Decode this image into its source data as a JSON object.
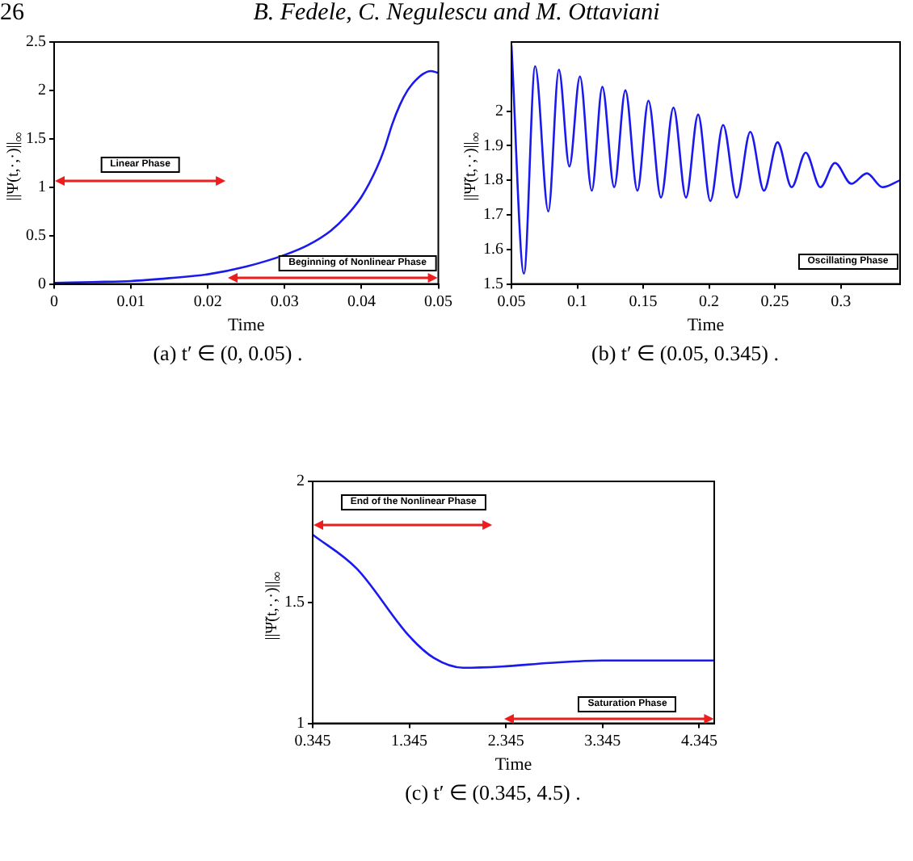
{
  "chart_data": [
    {
      "type": "other",
      "annotations": [
        "26",
        "B. Fedele, C. Negulescu and M. Ottaviani"
      ]
    },
    {
      "type": "line",
      "xlabel": "Time",
      "ylabel": "||Ψ(t,·,·)||$_{∞}$",
      "xlim": [
        0,
        0.05
      ],
      "ylim": [
        0,
        2.5
      ],
      "xticks": [
        0,
        0.01,
        0.02,
        0.03,
        0.04,
        0.05
      ],
      "yticks": [
        0,
        0.5,
        1,
        1.5,
        2,
        2.5
      ],
      "x": [
        0,
        0.005,
        0.01,
        0.015,
        0.02,
        0.025,
        0.03,
        0.033,
        0.036,
        0.038,
        0.04,
        0.042,
        0.043,
        0.044,
        0.045,
        0.046,
        0.047,
        0.048,
        0.049,
        0.05
      ],
      "series": [
        {
          "color": "#1a1aee",
          "values": [
            0.01,
            0.02,
            0.03,
            0.06,
            0.1,
            0.18,
            0.3,
            0.4,
            0.55,
            0.7,
            0.9,
            1.2,
            1.4,
            1.65,
            1.85,
            2.0,
            2.1,
            2.17,
            2.2,
            2.18
          ]
        }
      ],
      "annotations": [
        "Linear Phase",
        "Beginning of Nonlinear Phase",
        "(a) t′ ∈ (0, 0.05) ."
      ]
    },
    {
      "type": "line",
      "xlabel": "Time",
      "ylabel": "||Ψ̃(t,·,·)||$_{∞}$",
      "xlim": [
        0.05,
        0.345
      ],
      "ylim": [
        1.5,
        2.2
      ],
      "xticks": [
        0.05,
        0.1,
        0.15,
        0.2,
        0.25,
        0.3
      ],
      "yticks": [
        1.5,
        1.6,
        1.7,
        1.8,
        1.9,
        2
      ],
      "x": [
        0.05,
        0.0595,
        0.068,
        0.078,
        0.086,
        0.094,
        0.102,
        0.111,
        0.119,
        0.128,
        0.1365,
        0.1456,
        0.154,
        0.1635,
        0.173,
        0.1825,
        0.1917,
        0.201,
        0.2107,
        0.221,
        0.2313,
        0.2417,
        0.252,
        0.2627,
        0.2734,
        0.2845,
        0.2956,
        0.308,
        0.3198,
        0.3317,
        0.345
      ],
      "series": [
        {
          "color": "#1a1aee",
          "values": [
            2.19,
            1.53,
            2.13,
            1.71,
            2.12,
            1.84,
            2.1,
            1.77,
            2.07,
            1.78,
            2.06,
            1.77,
            2.03,
            1.75,
            2.01,
            1.75,
            1.99,
            1.74,
            1.96,
            1.75,
            1.94,
            1.77,
            1.91,
            1.78,
            1.88,
            1.78,
            1.85,
            1.79,
            1.82,
            1.78,
            1.8
          ]
        }
      ],
      "annotations": [
        "Oscillating Phase",
        "(b) t′ ∈ (0.05, 0.345) ."
      ]
    },
    {
      "type": "line",
      "xlabel": "Time",
      "ylabel": "||Ψ̃(t,·,·)||$_{∞}$",
      "xlim": [
        0.345,
        4.5
      ],
      "ylim": [
        1,
        2
      ],
      "xticks": [
        0.345,
        1.345,
        2.345,
        3.345,
        4.345
      ],
      "yticks": [
        1,
        1.5,
        2
      ],
      "x": [
        0.345,
        0.8,
        1.345,
        1.6,
        1.9,
        2.3,
        2.8,
        3.345,
        4.5
      ],
      "series": [
        {
          "color": "#1a1aee",
          "values": [
            1.78,
            1.64,
            1.36,
            1.27,
            1.23,
            1.235,
            1.25,
            1.26,
            1.26
          ]
        }
      ],
      "annotations": [
        "End of the Nonlinear Phase",
        "Saturation Phase",
        "(c) t′ ∈ (0.345, 4.5) ."
      ]
    }
  ]
}
